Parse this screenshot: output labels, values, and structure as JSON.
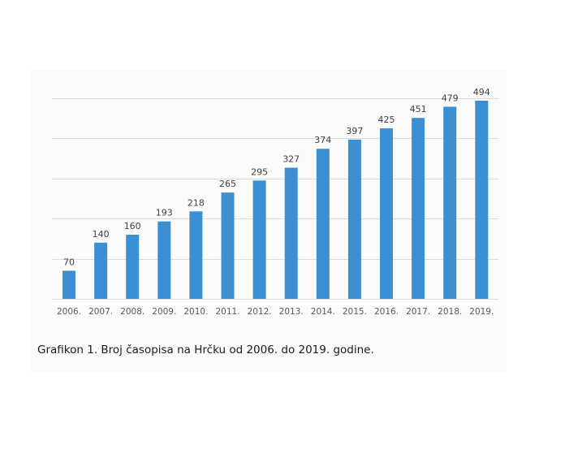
{
  "chart_data": {
    "type": "bar",
    "title": "",
    "xlabel": "",
    "ylabel": "",
    "categories": [
      "2006.",
      "2007.",
      "2008.",
      "2009.",
      "2010.",
      "2011.",
      "2012.",
      "2013.",
      "2014.",
      "2015.",
      "2016.",
      "2017.",
      "2018.",
      "2019."
    ],
    "values": [
      70,
      140,
      160,
      193,
      218,
      265,
      295,
      327,
      374,
      397,
      425,
      451,
      479,
      494
    ],
    "ylim": [
      0,
      500
    ],
    "y_gridlines": [
      0,
      100,
      200,
      300,
      400,
      500
    ],
    "grid": true,
    "data_labels": true,
    "legend": "none",
    "bar_color": "#3d8fd4",
    "grid_color": "#dcdcdc"
  },
  "caption": "Grafikon 1. Broj časopisa na Hrčku od 2006. do 2019. godine."
}
